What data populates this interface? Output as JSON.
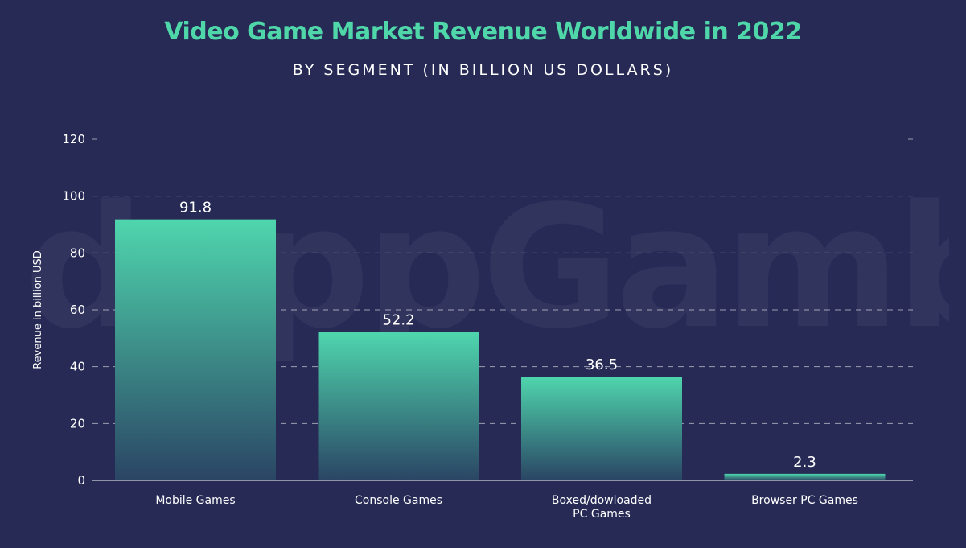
{
  "header": {
    "title": "Video Game Market Revenue Worldwide in 2022",
    "subtitle": "BY SEGMENT (IN BILLION US DOLLARS)"
  },
  "watermark": "dappGambl",
  "colors": {
    "background": "#262a55",
    "title": "#4fd6a9",
    "bar_top": "#4fd6ad",
    "bar_bottom": "#2a4564"
  },
  "chart_data": {
    "type": "bar",
    "title": "Video Game Market Revenue Worldwide in 2022",
    "subtitle": "BY SEGMENT (IN BILLION US DOLLARS)",
    "ylabel": "Revenue in billion USD",
    "xlabel": "",
    "ylim": [
      0,
      120
    ],
    "yticks": [
      0,
      20,
      40,
      60,
      80,
      100,
      120
    ],
    "grid": true,
    "categories": [
      "Mobile Games",
      "Console Games",
      "Boxed/dowloaded PC Games",
      "Browser PC Games"
    ],
    "category_lines": [
      [
        "Mobile Games"
      ],
      [
        "Console Games"
      ],
      [
        "Boxed/dowloaded",
        "PC Games"
      ],
      [
        "Browser PC Games"
      ]
    ],
    "values": [
      91.8,
      52.2,
      36.5,
      2.3
    ],
    "data_labels": [
      "91.8",
      "52.2",
      "36.5",
      "2.3"
    ]
  }
}
